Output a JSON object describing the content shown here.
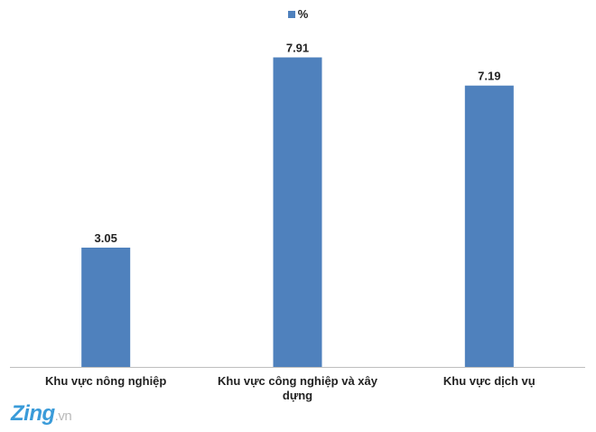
{
  "chart_data": {
    "type": "bar",
    "categories": [
      "Khu vực nông nghiệp",
      "Khu vực công nghiệp và xây dựng",
      "Khu vực dịch vụ"
    ],
    "series": [
      {
        "name": "%",
        "values": [
          3.05,
          7.91,
          7.19
        ],
        "color": "#4f81bd"
      }
    ],
    "data_labels": [
      "3.05",
      "7.91",
      "7.19"
    ],
    "ylim": [
      0,
      8.5
    ],
    "grid": false,
    "legend_position": "top-center"
  },
  "watermark": {
    "brand": "Zing",
    "tld": ".vn"
  }
}
